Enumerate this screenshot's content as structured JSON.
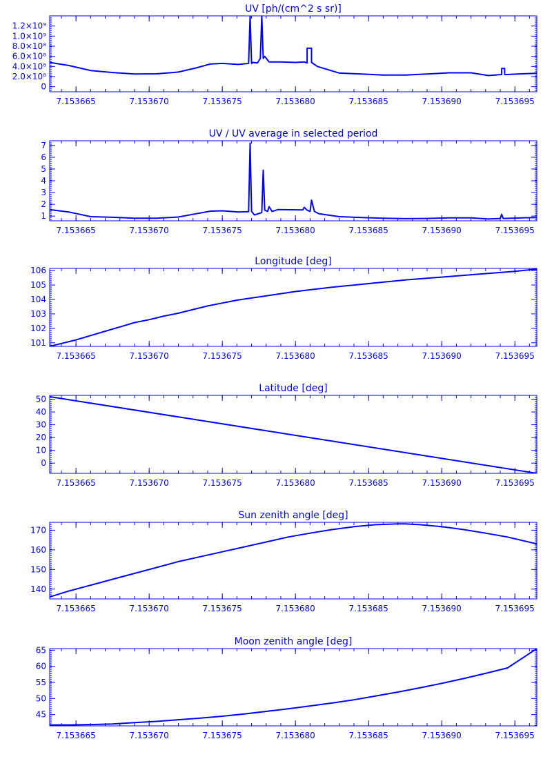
{
  "colors": {
    "foreground": "#0000ff",
    "background": "#ffffff"
  },
  "x_ticks": [
    "7.153665",
    "7.153670",
    "7.153675",
    "7.153680",
    "7.153685",
    "7.153690",
    "7.153695"
  ],
  "chart_data": [
    {
      "type": "line",
      "title": "UV [ph/(cm^2 s sr)]",
      "xlabel": "",
      "ylabel": "",
      "xlim": [
        7.1536632,
        7.1536965
      ],
      "ylim": [
        -100000000,
        1400000000
      ],
      "y_ticks": [
        {
          "label": "1.2×10⁹",
          "value": 1200000000
        },
        {
          "label": "1.0×10⁹",
          "value": 1000000000
        },
        {
          "label": "8.0×10⁸",
          "value": 800000000
        },
        {
          "label": "6.0×10⁸",
          "value": 600000000
        },
        {
          "label": "4.0×10⁸",
          "value": 400000000
        },
        {
          "label": "2.0×10⁸",
          "value": 200000000
        },
        {
          "label": "0",
          "value": 0
        }
      ],
      "x": [
        7.1536632,
        7.1536645,
        7.153666,
        7.1536675,
        7.153669,
        7.1536705,
        7.153672,
        7.1536732,
        7.1536742,
        7.153675,
        7.1536761,
        7.1536768,
        7.1536769,
        7.1536769,
        7.153677,
        7.1536771,
        7.1536774,
        7.1536776,
        7.1536777,
        7.1536777,
        7.1536778,
        7.1536779,
        7.1536782,
        7.153679,
        7.15368,
        7.1536806,
        7.1536808,
        7.1536808,
        7.1536811,
        7.1536811,
        7.1536815,
        7.153683,
        7.1536845,
        7.153686,
        7.1536875,
        7.153689,
        7.1536905,
        7.153692,
        7.1536932,
        7.153694,
        7.1536941,
        7.1536941,
        7.1536943,
        7.1536943,
        7.1536955,
        7.1536965
      ],
      "y": [
        480000000,
        420000000,
        320000000,
        280000000,
        250000000,
        255000000,
        290000000,
        370000000,
        450000000,
        460000000,
        440000000,
        460000000,
        1400000000,
        1400000000,
        460000000,
        480000000,
        470000000,
        560000000,
        1400000000,
        1400000000,
        560000000,
        600000000,
        490000000,
        490000000,
        480000000,
        490000000,
        470000000,
        760000000,
        760000000,
        480000000,
        400000000,
        270000000,
        250000000,
        230000000,
        230000000,
        250000000,
        275000000,
        275000000,
        220000000,
        240000000,
        240000000,
        360000000,
        360000000,
        240000000,
        255000000,
        265000000
      ]
    },
    {
      "type": "line",
      "title": "UV / UV average in selected period",
      "xlabel": "",
      "ylabel": "",
      "xlim": [
        7.1536632,
        7.1536965
      ],
      "ylim": [
        0.6,
        7.4
      ],
      "y_ticks": [
        {
          "label": "7",
          "value": 7
        },
        {
          "label": "6",
          "value": 6
        },
        {
          "label": "5",
          "value": 5
        },
        {
          "label": "4",
          "value": 4
        },
        {
          "label": "3",
          "value": 3
        },
        {
          "label": "2",
          "value": 2
        },
        {
          "label": "1",
          "value": 1
        }
      ],
      "x": [
        7.1536632,
        7.1536645,
        7.153666,
        7.1536675,
        7.153669,
        7.1536705,
        7.153672,
        7.1536732,
        7.1536742,
        7.153675,
        7.1536761,
        7.1536768,
        7.1536769,
        7.153677,
        7.1536772,
        7.1536777,
        7.1536778,
        7.1536779,
        7.1536781,
        7.1536782,
        7.1536784,
        7.1536788,
        7.1536805,
        7.1536806,
        7.1536808,
        7.153681,
        7.1536811,
        7.1536813,
        7.1536816,
        7.153683,
        7.1536845,
        7.153686,
        7.1536875,
        7.153689,
        7.1536905,
        7.153692,
        7.1536932,
        7.153694,
        7.1536941,
        7.1536942,
        7.1536955,
        7.1536965
      ],
      "y": [
        1.55,
        1.35,
        0.95,
        0.9,
        0.82,
        0.82,
        0.92,
        1.2,
        1.42,
        1.45,
        1.35,
        1.38,
        7.2,
        1.4,
        1.1,
        1.3,
        4.9,
        1.5,
        1.4,
        1.8,
        1.4,
        1.55,
        1.52,
        1.75,
        1.5,
        1.4,
        2.35,
        1.4,
        1.2,
        0.95,
        0.88,
        0.82,
        0.78,
        0.8,
        0.85,
        0.85,
        0.75,
        0.8,
        1.15,
        0.8,
        0.85,
        0.88
      ]
    },
    {
      "type": "line",
      "title": "Longitude [deg]",
      "xlabel": "",
      "ylabel": "",
      "xlim": [
        7.1536632,
        7.1536965
      ],
      "ylim": [
        100.75,
        106.15
      ],
      "y_ticks": [
        {
          "label": "106",
          "value": 106
        },
        {
          "label": "105",
          "value": 105
        },
        {
          "label": "104",
          "value": 104
        },
        {
          "label": "103",
          "value": 103
        },
        {
          "label": "102",
          "value": 102
        },
        {
          "label": "101",
          "value": 101
        }
      ],
      "x": [
        7.1536632,
        7.153664,
        7.153665,
        7.153666,
        7.153667,
        7.153668,
        7.153669,
        7.15367,
        7.153671,
        7.153672,
        7.153673,
        7.153674,
        7.153675,
        7.1536755,
        7.153676,
        7.153677,
        7.153678,
        7.153679,
        7.15368,
        7.1536825,
        7.153685,
        7.1536875,
        7.15369,
        7.1536925,
        7.153695,
        7.1536965
      ],
      "y": [
        100.75,
        100.95,
        101.2,
        101.5,
        101.8,
        102.1,
        102.4,
        102.6,
        102.85,
        103.05,
        103.3,
        103.55,
        103.75,
        103.85,
        103.95,
        104.1,
        104.25,
        104.4,
        104.55,
        104.85,
        105.1,
        105.35,
        105.55,
        105.75,
        105.95,
        106.1
      ]
    },
    {
      "type": "line",
      "title": "Latitude [deg]",
      "xlabel": "",
      "ylabel": "",
      "xlim": [
        7.1536632,
        7.1536965
      ],
      "ylim": [
        -8,
        53
      ],
      "y_ticks": [
        {
          "label": "50",
          "value": 50
        },
        {
          "label": "40",
          "value": 40
        },
        {
          "label": "30",
          "value": 30
        },
        {
          "label": "20",
          "value": 20
        },
        {
          "label": "10",
          "value": 10
        },
        {
          "label": "0",
          "value": 0
        }
      ],
      "x": [
        7.1536632,
        7.1536965
      ],
      "y": [
        52,
        -8
      ]
    },
    {
      "type": "line",
      "title": "Sun zenith angle [deg]",
      "xlabel": "",
      "ylabel": "",
      "xlim": [
        7.1536632,
        7.1536965
      ],
      "ylim": [
        135,
        174
      ],
      "y_ticks": [
        {
          "label": "170",
          "value": 170
        },
        {
          "label": "160",
          "value": 160
        },
        {
          "label": "150",
          "value": 150
        },
        {
          "label": "140",
          "value": 140
        }
      ],
      "x": [
        7.1536632,
        7.1536645,
        7.153666,
        7.1536675,
        7.153669,
        7.1536705,
        7.153672,
        7.1536735,
        7.153675,
        7.1536765,
        7.153678,
        7.1536795,
        7.153681,
        7.1536825,
        7.153684,
        7.1536855,
        7.153687,
        7.1536875,
        7.1536885,
        7.15369,
        7.1536915,
        7.153693,
        7.1536945,
        7.1536965
      ],
      "y": [
        136,
        139,
        142,
        145,
        148,
        151,
        154,
        156.5,
        159,
        161.5,
        164,
        166.5,
        168.5,
        170.3,
        171.8,
        172.8,
        173.2,
        173.2,
        172.8,
        171.8,
        170.3,
        168.5,
        166.5,
        163
      ]
    },
    {
      "type": "line",
      "title": "Moon zenith angle [deg]",
      "xlabel": "",
      "ylabel": "",
      "xlim": [
        7.1536632,
        7.1536965
      ],
      "ylim": [
        41.5,
        65.5
      ],
      "y_ticks": [
        {
          "label": "65",
          "value": 65
        },
        {
          "label": "60",
          "value": 60
        },
        {
          "label": "55",
          "value": 55
        },
        {
          "label": "50",
          "value": 50
        },
        {
          "label": "45",
          "value": 45
        }
      ],
      "x": [
        7.1536632,
        7.1536645,
        7.153666,
        7.1536675,
        7.153669,
        7.1536705,
        7.153672,
        7.1536735,
        7.153675,
        7.1536765,
        7.153678,
        7.1536795,
        7.153681,
        7.1536825,
        7.153684,
        7.1536855,
        7.153687,
        7.1536885,
        7.15369,
        7.1536915,
        7.153693,
        7.1536945,
        7.1536965
      ],
      "y": [
        41.8,
        41.8,
        41.9,
        42.1,
        42.5,
        42.9,
        43.4,
        43.9,
        44.5,
        45.2,
        46.0,
        46.8,
        47.7,
        48.6,
        49.6,
        50.8,
        52.0,
        53.3,
        54.7,
        56.2,
        57.8,
        59.5,
        65.5
      ]
    }
  ]
}
